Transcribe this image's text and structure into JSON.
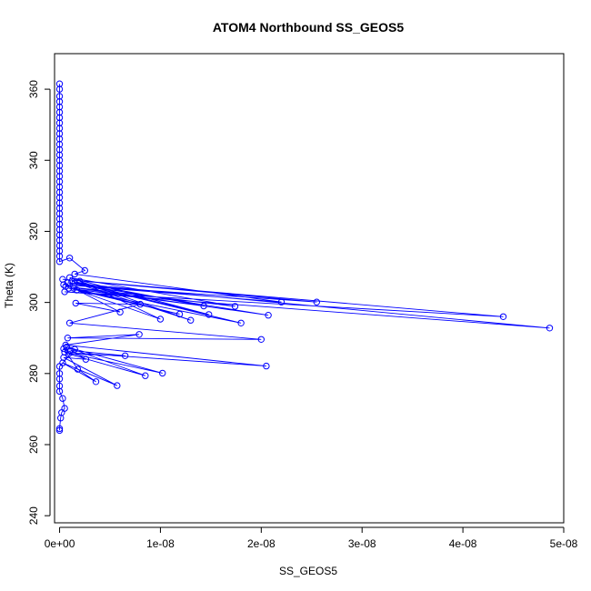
{
  "chart_data": {
    "type": "scatter",
    "title": "ATOM4 Northbound SS_GEOS5",
    "xlabel": "SS_GEOS5",
    "ylabel": "Theta (K)",
    "xlim": [
      -5e-10,
      5e-08
    ],
    "ylim": [
      238,
      370
    ],
    "x_ticks": [
      0,
      1e-08,
      2e-08,
      3e-08,
      4e-08,
      5e-08
    ],
    "x_tick_labels": [
      "0e+00",
      "1e-08",
      "2e-08",
      "3e-08",
      "4e-08",
      "5e-08"
    ],
    "y_ticks": [
      240,
      260,
      280,
      300,
      320,
      340,
      360
    ],
    "y_tick_labels": [
      "240",
      "260",
      "280",
      "300",
      "320",
      "340",
      "360"
    ],
    "color": "#0000ff",
    "marker": "open-circle",
    "connected": true,
    "series": [
      {
        "points": [
          [
            0.0,
            361.5
          ],
          [
            0.0,
            360.0
          ],
          [
            0.0,
            358.0
          ],
          [
            0.0,
            356.5
          ],
          [
            0.0,
            355.0
          ],
          [
            0.0,
            353.5
          ],
          [
            0.0,
            352.0
          ],
          [
            0.0,
            350.5
          ],
          [
            0.0,
            349.0
          ],
          [
            0.0,
            347.5
          ],
          [
            0.0,
            346.0
          ],
          [
            0.0,
            344.5
          ],
          [
            0.0,
            343.0
          ],
          [
            0.0,
            341.5
          ],
          [
            0.0,
            340.0
          ],
          [
            0.0,
            338.5
          ],
          [
            0.0,
            337.0
          ],
          [
            0.0,
            335.5
          ],
          [
            0.0,
            334.0
          ],
          [
            0.0,
            332.5
          ],
          [
            0.0,
            331.0
          ],
          [
            0.0,
            329.5
          ],
          [
            0.0,
            328.0
          ],
          [
            0.0,
            326.5
          ],
          [
            0.0,
            325.0
          ],
          [
            0.0,
            323.5
          ],
          [
            0.0,
            322.0
          ],
          [
            0.0,
            320.5
          ],
          [
            0.0,
            319.0
          ],
          [
            0.0,
            317.5
          ],
          [
            0.0,
            316.0
          ],
          [
            0.0,
            314.5
          ],
          [
            0.0,
            313.0
          ],
          [
            0.0,
            311.5
          ],
          [
            1e-09,
            312.5
          ],
          [
            2.5e-09,
            309.0
          ],
          [
            1.5e-09,
            308.0
          ],
          [
            2.2e-08,
            300.1
          ],
          [
            4e-10,
            305.0
          ],
          [
            2.55e-08,
            300.1
          ],
          [
            3e-10,
            306.5
          ],
          [
            4.4e-08,
            296.0
          ],
          [
            5e-10,
            303.0
          ],
          [
            4.86e-08,
            292.8
          ],
          [
            8e-10,
            305.5
          ],
          [
            2.07e-08,
            296.4
          ],
          [
            6e-10,
            304.5
          ],
          [
            1.74e-08,
            298.9
          ],
          [
            1e-09,
            307.0
          ],
          [
            1.48e-08,
            296.6
          ],
          [
            1.2e-09,
            306.0
          ],
          [
            1.43e-08,
            299.0
          ],
          [
            9e-10,
            304.0
          ],
          [
            1.8e-08,
            294.2
          ],
          [
            1.5e-09,
            305.5
          ],
          [
            1.3e-08,
            295.0
          ],
          [
            2e-09,
            306.0
          ],
          [
            1e-08,
            295.3
          ],
          [
            1.7e-09,
            303.5
          ],
          [
            1.19e-08,
            296.7
          ],
          [
            1.4e-09,
            304.0
          ],
          [
            6e-09,
            297.3
          ],
          [
            1.6e-09,
            299.8
          ],
          [
            8e-09,
            299.5
          ],
          [
            1e-09,
            294.2
          ],
          [
            2e-08,
            289.6
          ],
          [
            8e-10,
            290.0
          ],
          [
            7.9e-09,
            291.0
          ],
          [
            6e-10,
            288.0
          ],
          [
            2.05e-08,
            282.1
          ],
          [
            5e-10,
            286.0
          ],
          [
            1.02e-08,
            280.1
          ],
          [
            7e-10,
            287.5
          ],
          [
            8.5e-09,
            279.4
          ],
          [
            9e-10,
            285.5
          ],
          [
            6.5e-09,
            285.0
          ],
          [
            1.1e-09,
            286.5
          ],
          [
            2.6e-09,
            284.0
          ],
          [
            4e-10,
            284.5
          ],
          [
            5.7e-09,
            276.6
          ],
          [
            3e-10,
            283.0
          ],
          [
            3.6e-09,
            277.7
          ],
          [
            1.8e-09,
            281.2
          ],
          [
            4e-10,
            287.0
          ],
          [
            1.5e-09,
            286.8
          ],
          [
            0.0,
            282.0
          ],
          [
            0.0,
            280.0
          ],
          [
            0.0,
            278.5
          ],
          [
            0.0,
            276.5
          ],
          [
            0.0,
            275.0
          ],
          [
            3e-10,
            273.0
          ],
          [
            5e-10,
            270.2
          ],
          [
            2e-10,
            269.0
          ],
          [
            1e-10,
            267.5
          ],
          [
            0.0,
            264.5
          ],
          [
            0.0,
            264.0
          ]
        ]
      }
    ]
  }
}
